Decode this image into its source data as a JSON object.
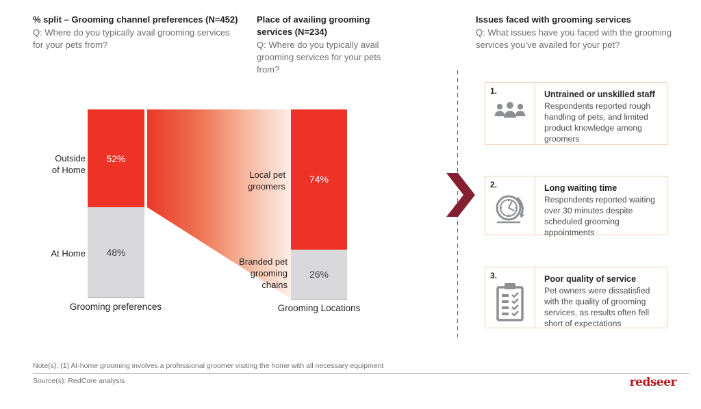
{
  "colors": {
    "accent_red": "#ed3328",
    "segment_gray": "#d9d9db",
    "chevron_maroon": "#841f31",
    "logo_red": "#b5161c",
    "box_border": "#eed3b6",
    "icon_gray": "#8d8f92",
    "text_dark": "#231f20",
    "text_gray": "#6d6e71"
  },
  "headers": {
    "left": {
      "title": "% split – Grooming channel preferences (N=452)",
      "question": "Q: Where do you typically avail grooming services for your pets from?"
    },
    "middle": {
      "title": "Place of availing grooming services (N=234)",
      "question": "Q: Where do you typically avail grooming services for your pets from?"
    },
    "right": {
      "title": "Issues faced with grooming services",
      "question": "Q: What issues have you faced with the grooming services you’ve availed for your pet?"
    }
  },
  "chart_data": [
    {
      "type": "bar",
      "subtype": "stacked-column",
      "title": "% split – Grooming channel preferences (N=452)",
      "categories": [
        "Outside of Home",
        "At Home"
      ],
      "values": [
        52,
        48
      ],
      "value_labels": [
        "52%",
        "48%"
      ],
      "segment_colors": [
        "#ed3328",
        "#d9d9db"
      ],
      "xlabel": "Grooming preferences",
      "ylabel": "",
      "ylim": [
        0,
        100
      ],
      "grid": false,
      "legend": "none"
    },
    {
      "type": "bar",
      "subtype": "stacked-column",
      "title": "Place of availing grooming services (N=234)",
      "categories": [
        "Local pet groomers",
        "Branded pet grooming chains"
      ],
      "values": [
        74,
        26
      ],
      "value_labels": [
        "74%",
        "26%"
      ],
      "segment_colors": [
        "#ed3328",
        "#d9d9db"
      ],
      "xlabel": "Grooming Locations",
      "ylabel": "",
      "ylim": [
        0,
        100
      ],
      "grid": false,
      "legend": "none"
    }
  ],
  "issues": {
    "items": [
      {
        "number": "1.",
        "icon": "people-group-icon",
        "title": "Untrained or unskilled staff",
        "description": "Respondents reported rough handling of pets, and limited product knowledge among groomers"
      },
      {
        "number": "2.",
        "icon": "clock-icon",
        "title": "Long waiting time",
        "description": "Respondents reported waiting over 30 minutes despite scheduled grooming appointments"
      },
      {
        "number": "3.",
        "icon": "clipboard-checklist-icon",
        "title": "Poor quality of service",
        "description": "Pet owners were dissatisfied with the quality of grooming services, as results often fell short of expectations"
      }
    ]
  },
  "footer": {
    "note": "Note(s): (1) At-home grooming involves a professional groomer visiting the home with all necessary equipment",
    "source": "Source(s): RedCore analysis",
    "logo": "redseer"
  }
}
